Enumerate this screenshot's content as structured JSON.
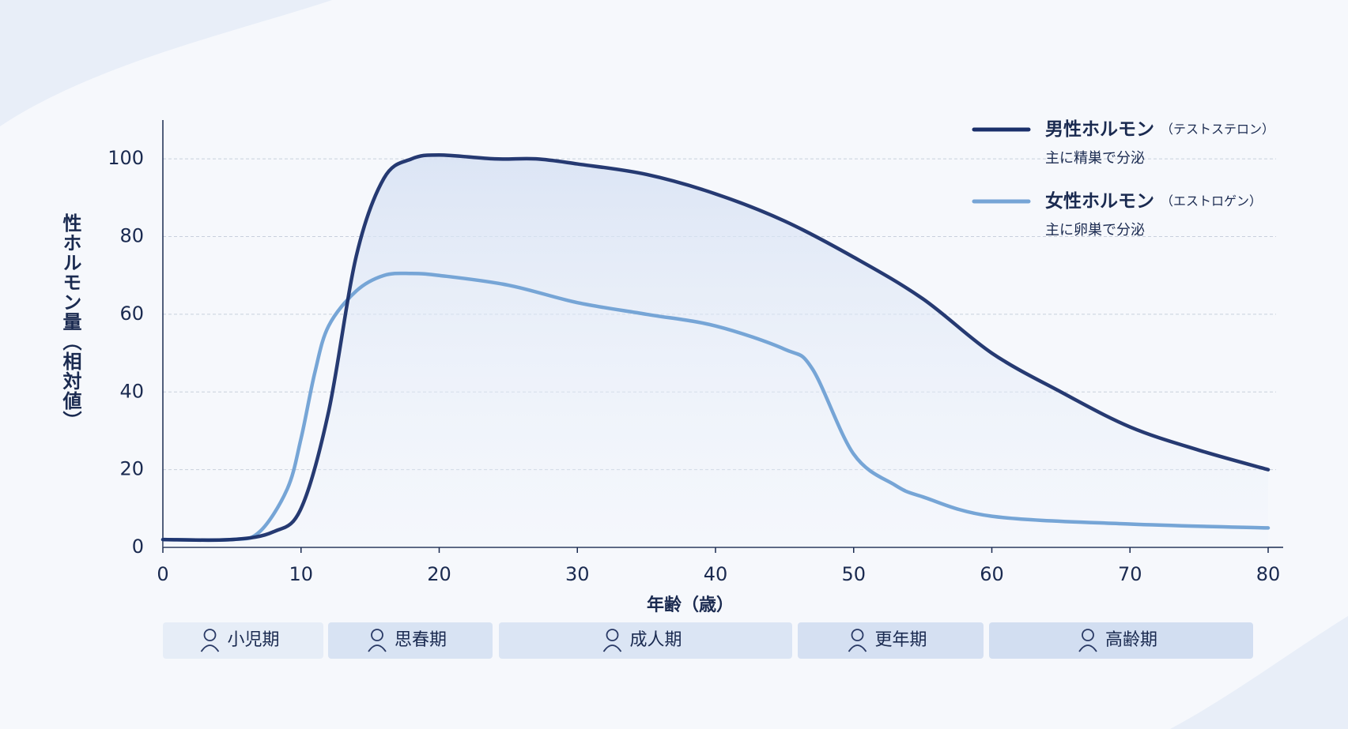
{
  "chart_data": {
    "type": "line",
    "x_label": "年齢（歳）",
    "y_label": "性ホルモン量（相対値）",
    "xlim": [
      0,
      80
    ],
    "xticks": [
      0,
      10,
      20,
      30,
      40,
      50,
      60,
      70,
      80
    ],
    "ylim": [
      0,
      110
    ],
    "yticks": [
      0,
      20,
      40,
      60,
      80,
      100
    ],
    "grid": true,
    "legend": "upper right",
    "series": [
      {
        "name": "男性ホルモン",
        "detail": "（テストステロン）",
        "note": "主に精巣で分泌",
        "color": "#1a2f6a",
        "x": [
          0,
          5,
          8,
          10,
          12,
          14,
          16,
          18,
          20,
          24,
          27,
          30,
          35,
          40,
          45,
          50,
          55,
          60,
          65,
          70,
          75,
          80
        ],
        "values": [
          2,
          2,
          4,
          10,
          35,
          75,
          95,
          100,
          101,
          100,
          100,
          98.7,
          96,
          91,
          84,
          74.7,
          64,
          50,
          40,
          31,
          25,
          20
        ]
      },
      {
        "name": "女性ホルモン",
        "detail": "（エストロゲン）",
        "note": "主に卵巣で分泌",
        "color": "#76a5d6",
        "x": [
          0,
          5,
          7,
          9,
          10,
          11,
          12,
          14,
          16,
          18,
          20,
          25,
          30,
          35,
          40,
          45,
          47,
          50,
          53,
          55,
          60,
          70,
          80
        ],
        "values": [
          2,
          2,
          4,
          15,
          28,
          45,
          57,
          66,
          70,
          70.5,
          70,
          67.5,
          63,
          60,
          57,
          51,
          46,
          24,
          16,
          13,
          8,
          6,
          5
        ]
      }
    ],
    "phases": [
      "小児期",
      "思春期",
      "成人期",
      "更年期",
      "高齢期"
    ]
  }
}
